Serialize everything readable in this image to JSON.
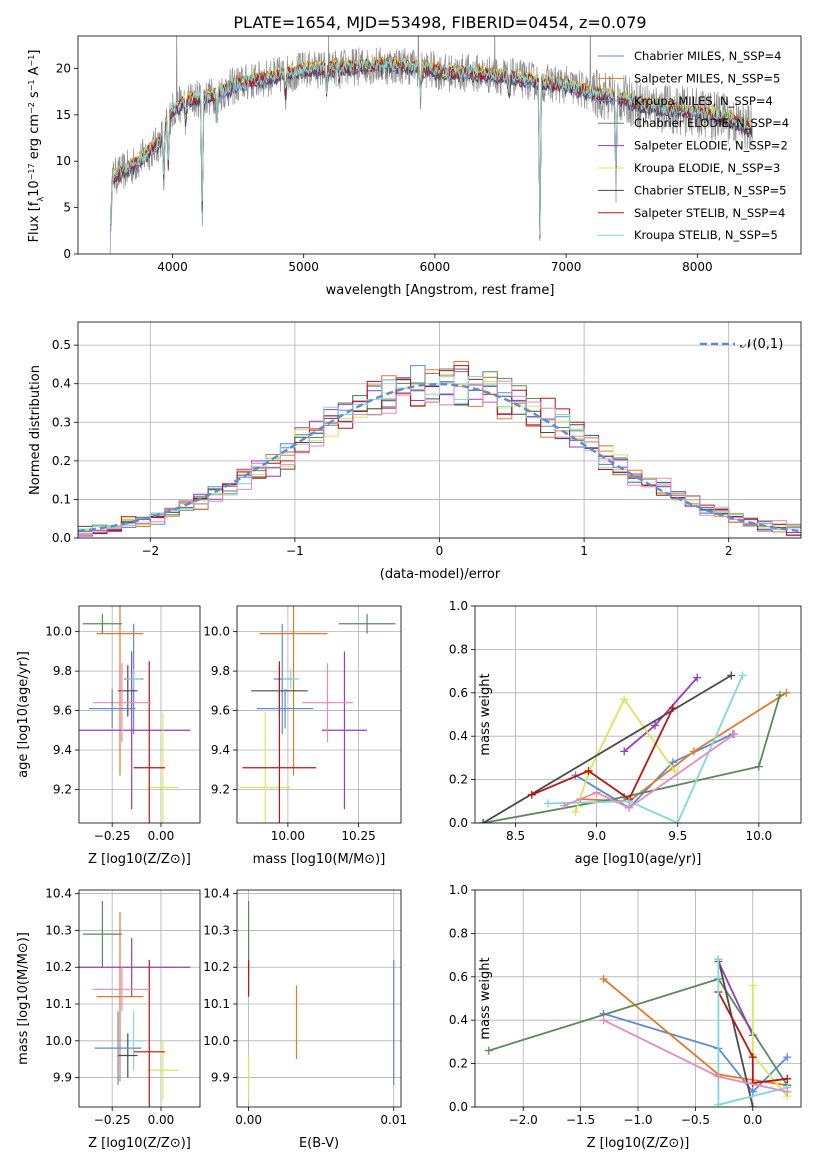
{
  "figure": {
    "title": "PLATE=1654, MJD=53498, FIBERID=0454, z=0.079"
  },
  "colors": [
    "#5b8bd6",
    "#e07b2a",
    "#8f8f8f",
    "#5a8a5a",
    "#9b3bb5",
    "#d6e85a",
    "#4a4a4a",
    "#b81515",
    "#7fd8dc",
    "#e68ac0"
  ],
  "chart_data": [
    {
      "id": "spectrum",
      "type": "line",
      "title": "PLATE=1654, MJD=53498, FIBERID=0454, z=0.079",
      "xlabel": "wavelength [Angstrom, rest frame]",
      "ylabel": "Flux [f_λ 10^-17 erg cm^-2 s^-1 A^-1]",
      "xlim": [
        3280,
        8790
      ],
      "ylim": [
        0,
        23.5
      ],
      "xticks": [
        "4000",
        "5000",
        "6000",
        "7000",
        "8000"
      ],
      "yticks": [
        "0",
        "5",
        "10",
        "15",
        "20"
      ],
      "grid": false,
      "legend": "top-right",
      "series": [
        {
          "name": "Chabrier MILES, N_SSP=4"
        },
        {
          "name": "Salpeter MILES, N_SSP=5"
        },
        {
          "name": "Kroupa MILES, N_SSP=4"
        },
        {
          "name": "Chabrier ELODIE, N_SSP=4"
        },
        {
          "name": "Salpeter ELODIE, N_SSP=2"
        },
        {
          "name": "Kroupa ELODIE, N_SSP=3"
        },
        {
          "name": "Chabrier STELIB, N_SSP=5"
        },
        {
          "name": "Salpeter STELIB, N_SSP=4"
        },
        {
          "name": "Kroupa STELIB, N_SSP=5"
        }
      ],
      "continuum": {
        "x": [
          3520,
          3700,
          3900,
          4000,
          4100,
          4300,
          4500,
          4800,
          5000,
          5200,
          5500,
          5800,
          6100,
          6300,
          6600,
          6800,
          7000,
          7200,
          7400,
          7600,
          7800,
          8000,
          8200,
          8400
        ],
        "y": [
          8,
          9.5,
          12,
          15.5,
          16.5,
          17,
          18.3,
          19.2,
          19.8,
          20,
          20.3,
          20.3,
          19.5,
          19.5,
          19,
          18.5,
          18.2,
          17.3,
          16.8,
          16,
          15.6,
          15.2,
          14.8,
          13.5
        ]
      }
    },
    {
      "id": "residuals",
      "type": "histogram",
      "xlabel": "(data-model)/error",
      "ylabel": "Normed distribution",
      "xlim": [
        -2.5,
        2.5
      ],
      "ylim": [
        0,
        0.56
      ],
      "xticks": [
        "−2",
        "−1",
        "0",
        "1",
        "2"
      ],
      "yticks": [
        "0.0",
        "0.1",
        "0.2",
        "0.3",
        "0.4",
        "0.5"
      ],
      "grid": true,
      "legend": "top-right",
      "reference_curve": {
        "name": "𝒩(0,1)",
        "mean": 0,
        "sigma": 1
      },
      "bin_edges": [
        -2.5,
        -2.4,
        -2.3,
        -2.2,
        -2.1,
        -2.0,
        -1.9,
        -1.8,
        -1.7,
        -1.6,
        -1.5,
        -1.4,
        -1.3,
        -1.2,
        -1.1,
        -1.0,
        -0.9,
        -0.8,
        -0.7,
        -0.6,
        -0.5,
        -0.4,
        -0.3,
        -0.2,
        -0.1,
        0.0,
        0.1,
        0.2,
        0.3,
        0.4,
        0.5,
        0.6,
        0.7,
        0.8,
        0.9,
        1.0,
        1.1,
        1.2,
        1.3,
        1.4,
        1.5,
        1.6,
        1.7,
        1.8,
        1.9,
        2.0,
        2.1,
        2.2,
        2.3,
        2.4,
        2.5
      ]
    },
    {
      "id": "age_vs_Z",
      "type": "errorbar",
      "xlabel": "Z [log10(Z/Z⊙)]",
      "ylabel": "age [log10(age/yr)]",
      "xlim": [
        -0.42,
        0.2
      ],
      "ylim": [
        9.03,
        10.13
      ],
      "xticks": [
        "−0.25",
        "0.00"
      ],
      "yticks": [
        "9.2",
        "9.4",
        "9.6",
        "9.8",
        "10.0"
      ],
      "grid": true,
      "points": [
        {
          "x": -0.14,
          "y": 9.76,
          "xerr": 0.05,
          "yerr": 0.28,
          "color": 0
        },
        {
          "x": -0.21,
          "y": 9.99,
          "xerr": 0.12,
          "yerr": 0.72,
          "color": 1
        },
        {
          "x": -0.3,
          "y": 10.04,
          "xerr": 0.1,
          "yerr": 0.05,
          "color": 3
        },
        {
          "x": -0.15,
          "y": 9.5,
          "xerr": 0.3,
          "yerr": 0.4,
          "color": 4
        },
        {
          "x": 0.01,
          "y": 9.21,
          "xerr": 0.08,
          "yerr": 0.38,
          "color": 5
        },
        {
          "x": -0.17,
          "y": 9.7,
          "xerr": 0.05,
          "yerr": 0.13,
          "color": 6
        },
        {
          "x": -0.06,
          "y": 9.31,
          "xerr": 0.08,
          "yerr": 0.54,
          "color": 7
        },
        {
          "x": -0.14,
          "y": 9.76,
          "xerr": 0.04,
          "yerr": 0.05,
          "color": 8
        },
        {
          "x": -0.2,
          "y": 9.64,
          "xerr": 0.15,
          "yerr": 0.2,
          "color": 9
        },
        {
          "x": -0.25,
          "y": 9.61,
          "xerr": 0.12,
          "yerr": 0.1,
          "color": 0
        }
      ]
    },
    {
      "id": "age_vs_mass",
      "type": "errorbar",
      "xlabel": "mass [log10(M/M⊙)]",
      "ylabel": "",
      "xlim": [
        9.82,
        10.4
      ],
      "ylim": [
        9.03,
        10.13
      ],
      "xticks": [
        "10.00",
        "10.25"
      ],
      "yticks": [
        "9.2",
        "9.4",
        "9.6",
        "9.8",
        "10.0"
      ],
      "grid": true,
      "points": [
        {
          "x": 9.98,
          "y": 9.76,
          "xerr": 0.03,
          "yerr": 0.28,
          "color": 0
        },
        {
          "x": 10.02,
          "y": 9.99,
          "xerr": 0.12,
          "yerr": 0.72,
          "color": 1
        },
        {
          "x": 10.28,
          "y": 10.04,
          "xerr": 0.1,
          "yerr": 0.05,
          "color": 3
        },
        {
          "x": 10.2,
          "y": 9.5,
          "xerr": 0.08,
          "yerr": 0.4,
          "color": 4
        },
        {
          "x": 9.92,
          "y": 9.21,
          "xerr": 0.09,
          "yerr": 0.38,
          "color": 5
        },
        {
          "x": 9.97,
          "y": 9.7,
          "xerr": 0.1,
          "yerr": 0.13,
          "color": 6
        },
        {
          "x": 9.97,
          "y": 9.31,
          "xerr": 0.13,
          "yerr": 0.54,
          "color": 7
        },
        {
          "x": 10.01,
          "y": 9.76,
          "xerr": 0.03,
          "yerr": 0.05,
          "color": 8
        },
        {
          "x": 10.14,
          "y": 9.64,
          "xerr": 0.09,
          "yerr": 0.2,
          "color": 9
        },
        {
          "x": 9.99,
          "y": 9.61,
          "xerr": 0.1,
          "yerr": 0.1,
          "color": 0
        }
      ]
    },
    {
      "id": "weight_vs_age",
      "type": "line",
      "xlabel": "age [log10(age/yr)]",
      "ylabel": "mass weight",
      "xlim": [
        8.25,
        10.26
      ],
      "ylim": [
        0,
        1
      ],
      "xticks": [
        "8.5",
        "9.0",
        "9.5",
        "10.0"
      ],
      "yticks": [
        "0.0",
        "0.2",
        "0.4",
        "0.6",
        "0.8",
        "1.0"
      ],
      "grid": true,
      "series": [
        {
          "color": 0,
          "points": [
            [
              8.87,
              0.22
            ],
            [
              9.2,
              0.07
            ],
            [
              9.47,
              0.28
            ],
            [
              9.84,
              0.41
            ]
          ]
        },
        {
          "color": 1,
          "points": [
            [
              8.9,
              0.11
            ],
            [
              9.2,
              0.1
            ],
            [
              9.6,
              0.33
            ],
            [
              10.17,
              0.6
            ]
          ]
        },
        {
          "color": 3,
          "points": [
            [
              8.3,
              0.0
            ],
            [
              9.17,
              0.12
            ],
            [
              10.0,
              0.26
            ],
            [
              10.13,
              0.59
            ]
          ]
        },
        {
          "color": 4,
          "points": [
            [
              9.17,
              0.33
            ],
            [
              9.36,
              0.45
            ],
            [
              9.62,
              0.67
            ]
          ]
        },
        {
          "color": 5,
          "points": [
            [
              8.87,
              0.05
            ],
            [
              8.95,
              0.23
            ],
            [
              9.17,
              0.57
            ],
            [
              9.48,
              0.24
            ]
          ]
        },
        {
          "color": 6,
          "points": [
            [
              8.3,
              0.0
            ],
            [
              9.83,
              0.68
            ]
          ]
        },
        {
          "color": 7,
          "points": [
            [
              8.6,
              0.13
            ],
            [
              8.95,
              0.24
            ],
            [
              9.2,
              0.11
            ],
            [
              9.47,
              0.53
            ]
          ]
        },
        {
          "color": 8,
          "points": [
            [
              8.7,
              0.09
            ],
            [
              9.2,
              0.1
            ],
            [
              9.5,
              0.0
            ],
            [
              9.9,
              0.68
            ]
          ]
        },
        {
          "color": 9,
          "points": [
            [
              8.8,
              0.08
            ],
            [
              9.0,
              0.14
            ],
            [
              9.2,
              0.07
            ],
            [
              9.85,
              0.41
            ]
          ]
        }
      ]
    },
    {
      "id": "mass_vs_Z",
      "type": "errorbar",
      "xlabel": "Z [log10(Z/Z⊙)]",
      "ylabel": "mass [log10(M/M⊙)]",
      "xlim": [
        -0.42,
        0.2
      ],
      "ylim": [
        9.82,
        10.41
      ],
      "xticks": [
        "−0.25",
        "0.00"
      ],
      "yticks": [
        "9.9",
        "10.0",
        "10.1",
        "10.2",
        "10.3",
        "10.4"
      ],
      "grid": true,
      "points": [
        {
          "x": -0.14,
          "y": 10.0,
          "xerr": 0.05,
          "yerr": 0.08,
          "color": 8
        },
        {
          "x": -0.21,
          "y": 10.12,
          "xerr": 0.12,
          "yerr": 0.23,
          "color": 1
        },
        {
          "x": -0.3,
          "y": 10.29,
          "xerr": 0.1,
          "yerr": 0.09,
          "color": 3
        },
        {
          "x": -0.15,
          "y": 10.2,
          "xerr": 0.3,
          "yerr": 0.08,
          "color": 4
        },
        {
          "x": 0.01,
          "y": 9.92,
          "xerr": 0.08,
          "yerr": 0.08,
          "color": 5
        },
        {
          "x": -0.17,
          "y": 9.96,
          "xerr": 0.05,
          "yerr": 0.06,
          "color": 6
        },
        {
          "x": -0.06,
          "y": 9.97,
          "xerr": 0.08,
          "yerr": 0.25,
          "color": 7
        },
        {
          "x": -0.2,
          "y": 10.14,
          "xerr": 0.15,
          "yerr": 0.06,
          "color": 9
        },
        {
          "x": -0.22,
          "y": 9.98,
          "xerr": 0.12,
          "yerr": 0.1,
          "color": 0
        }
      ]
    },
    {
      "id": "mass_vs_EBV",
      "type": "errorbar",
      "xlabel": "E(B-V)",
      "ylabel": "",
      "xlim": [
        -0.0008,
        0.0105
      ],
      "ylim": [
        9.82,
        10.41
      ],
      "xticks": [
        "0.00",
        "0.01"
      ],
      "yticks": [
        "9.9",
        "10.0",
        "10.1",
        "10.2",
        "10.3",
        "10.4"
      ],
      "grid": true,
      "points": [
        {
          "x": 0.0,
          "y": 10.28,
          "xerr": 0,
          "yerr": 0.1,
          "color": 3
        },
        {
          "x": 0.0,
          "y": 10.17,
          "xerr": 0,
          "yerr": 0.05,
          "color": 7
        },
        {
          "x": 0.0,
          "y": 9.9,
          "xerr": 0,
          "yerr": 0.06,
          "color": 5
        },
        {
          "x": 0.0033,
          "y": 10.05,
          "xerr": 0,
          "yerr": 0.1,
          "color": 1
        },
        {
          "x": 0.01,
          "y": 10.05,
          "xerr": 0,
          "yerr": 0.17,
          "color": 0
        }
      ]
    },
    {
      "id": "weight_vs_Z",
      "type": "line",
      "xlabel": "Z [log10(Z/Z⊙)]",
      "ylabel": "mass weight",
      "xlim": [
        -2.42,
        0.42
      ],
      "ylim": [
        0,
        1
      ],
      "xticks": [
        "−2.0",
        "−1.5",
        "−1.0",
        "−0.5",
        "0.0"
      ],
      "yticks": [
        "0.0",
        "0.2",
        "0.4",
        "0.6",
        "0.8",
        "1.0"
      ],
      "grid": true,
      "series": [
        {
          "color": 0,
          "points": [
            [
              -1.3,
              0.43
            ],
            [
              -0.3,
              0.27
            ],
            [
              0.0,
              0.07
            ],
            [
              0.3,
              0.23
            ]
          ]
        },
        {
          "color": 1,
          "points": [
            [
              -1.3,
              0.59
            ],
            [
              -0.3,
              0.15
            ],
            [
              0.3,
              0.1
            ]
          ]
        },
        {
          "color": 3,
          "points": [
            [
              -2.3,
              0.26
            ],
            [
              -0.3,
              0.59
            ],
            [
              0.3,
              0.1
            ]
          ]
        },
        {
          "color": 4,
          "points": [
            [
              -0.3,
              0.67
            ],
            [
              0.0,
              0.33
            ]
          ]
        },
        {
          "color": 5,
          "points": [
            [
              0.0,
              0.56
            ],
            [
              0.0,
              0.24
            ],
            [
              0.3,
              0.05
            ]
          ]
        },
        {
          "color": 6,
          "points": [
            [
              -0.3,
              0.68
            ],
            [
              0.0,
              0.0
            ]
          ]
        },
        {
          "color": 7,
          "points": [
            [
              -0.3,
              0.53
            ],
            [
              0.0,
              0.23
            ],
            [
              0.0,
              0.11
            ],
            [
              0.3,
              0.13
            ]
          ]
        },
        {
          "color": 8,
          "points": [
            [
              -0.3,
              0.68
            ],
            [
              -0.3,
              0.01
            ],
            [
              0.3,
              0.09
            ]
          ]
        },
        {
          "color": 9,
          "points": [
            [
              -1.3,
              0.4
            ],
            [
              -0.3,
              0.14
            ],
            [
              0.3,
              0.07
            ]
          ]
        }
      ]
    }
  ]
}
